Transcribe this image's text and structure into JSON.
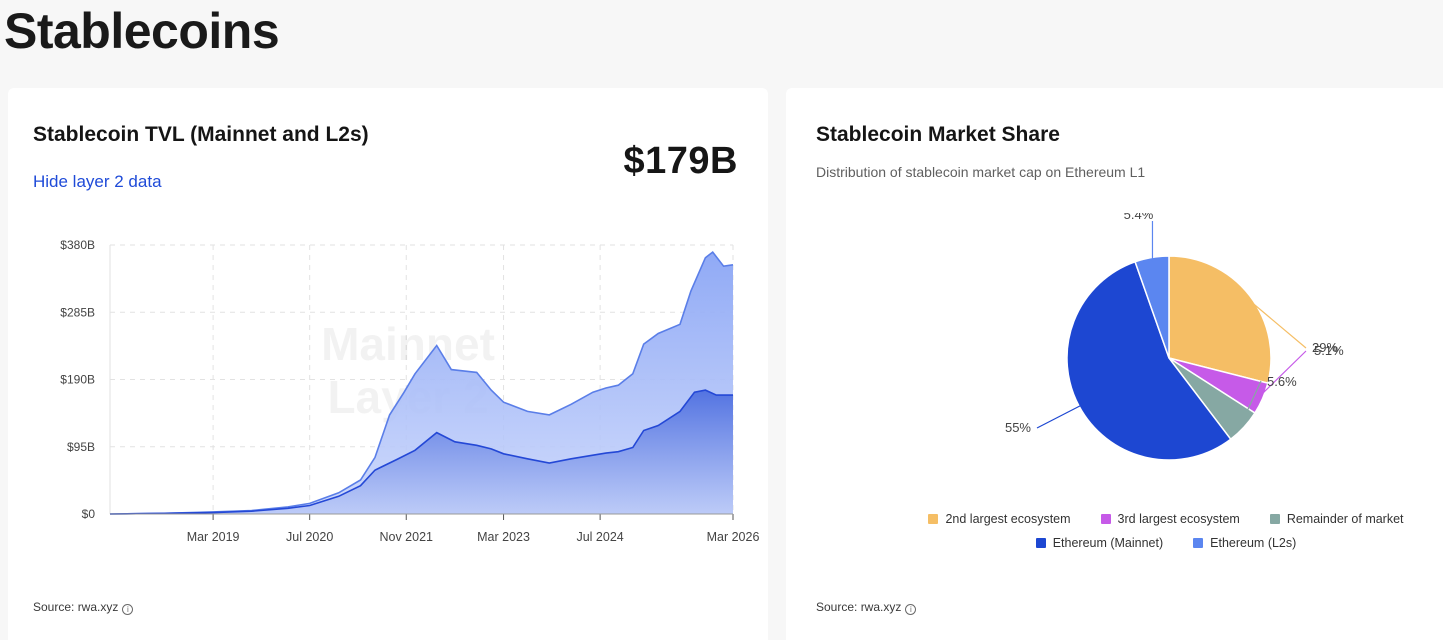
{
  "page": {
    "title": "Stablecoins"
  },
  "tvl_card": {
    "title": "Stablecoin TVL (Mainnet and L2s)",
    "toggle_label": "Hide layer 2 data",
    "value": "$179B",
    "source": "Source: rwa.xyz",
    "watermark": [
      "Mainnet",
      "Layer 2"
    ]
  },
  "share_card": {
    "title": "Stablecoin Market Share",
    "subtitle": "Distribution of stablecoin market cap on Ethereum L1",
    "source": "Source: rwa.xyz"
  },
  "colors": {
    "mainnet_line": "#2448d6",
    "total_line": "#5a7ee8",
    "yellow": "#f5be65",
    "purple": "#c65ae8",
    "teal": "#86a8a3",
    "blue": "#1d47d2",
    "lightblue": "#5b86f0"
  },
  "chart_data": [
    {
      "type": "area",
      "x_ticks": [
        "Mar 2019",
        "Jul 2020",
        "Nov 2021",
        "Mar 2023",
        "Jul 2024",
        "Mar 2026"
      ],
      "y_ticks": [
        "$0",
        "$95B",
        "$190B",
        "$285B",
        "$380B"
      ],
      "ylim": [
        0,
        380
      ],
      "xlim": [
        2017.75,
        2026.33
      ],
      "series": [
        {
          "name": "Mainnet",
          "points": [
            [
              2017.75,
              0
            ],
            [
              2018.5,
              1
            ],
            [
              2019.17,
              2
            ],
            [
              2019.7,
              4
            ],
            [
              2020.2,
              8
            ],
            [
              2020.5,
              12
            ],
            [
              2020.9,
              25
            ],
            [
              2021.2,
              40
            ],
            [
              2021.4,
              62
            ],
            [
              2021.7,
              77
            ],
            [
              2021.95,
              90
            ],
            [
              2022.25,
              115
            ],
            [
              2022.5,
              102
            ],
            [
              2022.8,
              97
            ],
            [
              2023.0,
              92
            ],
            [
              2023.17,
              85
            ],
            [
              2023.5,
              78
            ],
            [
              2023.8,
              72
            ],
            [
              2024.1,
              78
            ],
            [
              2024.4,
              83
            ],
            [
              2024.58,
              86
            ],
            [
              2024.75,
              88
            ],
            [
              2024.95,
              94
            ],
            [
              2025.1,
              118
            ],
            [
              2025.3,
              125
            ],
            [
              2025.6,
              145
            ],
            [
              2025.8,
              172
            ],
            [
              2025.95,
              175
            ],
            [
              2026.1,
              168
            ],
            [
              2026.33,
              168
            ]
          ]
        },
        {
          "name": "Layer 2",
          "points": [
            [
              2017.75,
              0
            ],
            [
              2018.5,
              1
            ],
            [
              2019.17,
              3
            ],
            [
              2019.7,
              5
            ],
            [
              2020.2,
              10
            ],
            [
              2020.5,
              15
            ],
            [
              2020.9,
              30
            ],
            [
              2021.2,
              48
            ],
            [
              2021.4,
              80
            ],
            [
              2021.6,
              140
            ],
            [
              2021.8,
              172
            ],
            [
              2021.95,
              198
            ],
            [
              2022.25,
              238
            ],
            [
              2022.45,
              204
            ],
            [
              2022.8,
              200
            ],
            [
              2023.0,
              175
            ],
            [
              2023.17,
              158
            ],
            [
              2023.5,
              145
            ],
            [
              2023.8,
              140
            ],
            [
              2024.1,
              155
            ],
            [
              2024.4,
              172
            ],
            [
              2024.58,
              178
            ],
            [
              2024.75,
              182
            ],
            [
              2024.95,
              198
            ],
            [
              2025.1,
              240
            ],
            [
              2025.3,
              255
            ],
            [
              2025.6,
              268
            ],
            [
              2025.75,
              315
            ],
            [
              2025.95,
              362
            ],
            [
              2026.05,
              370
            ],
            [
              2026.2,
              350
            ],
            [
              2026.33,
              352
            ]
          ]
        }
      ]
    },
    {
      "type": "pie",
      "slices": [
        {
          "label": "2nd largest ecosystem",
          "value": 29,
          "display": "29%",
          "color": "#f5be65"
        },
        {
          "label": "3rd largest ecosystem",
          "value": 5.1,
          "display": "5.1%",
          "color": "#c65ae8"
        },
        {
          "label": "Remainder of market",
          "value": 5.6,
          "display": "5.6%",
          "color": "#86a8a3"
        },
        {
          "label": "Ethereum (Mainnet)",
          "value": 55,
          "display": "55%",
          "color": "#1d47d2"
        },
        {
          "label": "Ethereum (L2s)",
          "value": 5.4,
          "display": "5.4%",
          "color": "#5b86f0"
        }
      ],
      "legend_rows": [
        [
          0,
          1,
          2
        ],
        [
          3,
          4
        ]
      ]
    }
  ]
}
